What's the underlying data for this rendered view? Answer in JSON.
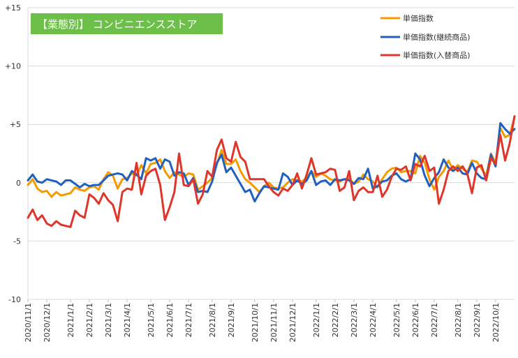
{
  "chart_data": {
    "type": "line",
    "title_badge": "【業態別】 コンビニエンスストア",
    "ylim": [
      -10,
      15
    ],
    "y_ticks": [
      {
        "value": 15,
        "label": "+15"
      },
      {
        "value": 10,
        "label": "+10"
      },
      {
        "value": 5,
        "label": "+5"
      },
      {
        "value": 0,
        "label": "0"
      },
      {
        "value": -5,
        "label": "-5"
      },
      {
        "value": -10,
        "label": "-10"
      }
    ],
    "x_ticks": [
      {
        "i": 0,
        "label": "2020/11/1"
      },
      {
        "i": 4,
        "label": "2020/12/1"
      },
      {
        "i": 9,
        "label": "2021/1/1"
      },
      {
        "i": 13,
        "label": "2021/2/1"
      },
      {
        "i": 17,
        "label": "2021/3/1"
      },
      {
        "i": 21,
        "label": "2021/4/1"
      },
      {
        "i": 26,
        "label": "2021/5/1"
      },
      {
        "i": 30,
        "label": "2021/6/1"
      },
      {
        "i": 34,
        "label": "2021/7/1"
      },
      {
        "i": 39,
        "label": "2021/8/1"
      },
      {
        "i": 43,
        "label": "2021/9/1"
      },
      {
        "i": 48,
        "label": "2021/10/1"
      },
      {
        "i": 52,
        "label": "2021/11/1"
      },
      {
        "i": 56,
        "label": "2021/12/1"
      },
      {
        "i": 61,
        "label": "2022/1/1"
      },
      {
        "i": 65,
        "label": "2022/2/1"
      },
      {
        "i": 69,
        "label": "2022/3/1"
      },
      {
        "i": 73,
        "label": "2022/4/1"
      },
      {
        "i": 78,
        "label": "2022/5/1"
      },
      {
        "i": 82,
        "label": "2022/6/1"
      },
      {
        "i": 86,
        "label": "2022/7/1"
      },
      {
        "i": 91,
        "label": "2022/8/1"
      },
      {
        "i": 95,
        "label": "2022/9/1"
      },
      {
        "i": 99,
        "label": "2022/10/1"
      }
    ],
    "x_count": 104,
    "grid": "horizontal",
    "legend_position": "top-right",
    "series": [
      {
        "name": "単価指数",
        "color": "#F59A00",
        "values": [
          -0.2,
          0.3,
          -0.5,
          -0.8,
          -0.7,
          -1.2,
          -0.8,
          -1.1,
          -1.0,
          -0.9,
          -0.4,
          -0.6,
          -0.7,
          -0.4,
          -0.3,
          -0.6,
          0.3,
          0.9,
          0.6,
          -0.5,
          0.3,
          0.4,
          0.8,
          0.6,
          1.5,
          0.8,
          1.6,
          1.7,
          2.0,
          1.0,
          0.4,
          0.9,
          0.7,
          0.5,
          0.8,
          0.7,
          -0.6,
          -0.3,
          0.0,
          0.4,
          1.6,
          2.8,
          1.6,
          1.6,
          2.0,
          1.0,
          0.3,
          0.0,
          -0.4,
          -0.8,
          -0.3,
          0.0,
          -0.4,
          -0.5,
          -0.4,
          0.0,
          0.3,
          0.2,
          0.1,
          0.4,
          1.0,
          0.5,
          0.8,
          0.6,
          0.3,
          0.2,
          0.1,
          0.3,
          0.4,
          -0.1,
          0.1,
          0.7,
          0.3,
          0.1,
          -0.4,
          0.3,
          0.9,
          1.2,
          1.3,
          0.9,
          1.0,
          1.0,
          0.8,
          2.3,
          1.7,
          0.3,
          -0.6,
          0.5,
          1.0,
          1.9,
          1.1,
          1.5,
          1.2,
          0.9,
          1.9,
          1.8,
          1.2,
          0.6,
          2.5,
          1.7,
          4.7,
          3.9,
          4.1,
          5.6
        ]
      },
      {
        "name": "単価指数(継続商品)",
        "color": "#2060C0",
        "values": [
          0.2,
          0.7,
          0.1,
          0.0,
          0.3,
          0.2,
          0.1,
          -0.2,
          0.2,
          0.2,
          -0.1,
          -0.4,
          -0.1,
          -0.3,
          -0.2,
          -0.2,
          0.2,
          0.6,
          0.7,
          0.8,
          0.7,
          0.2,
          1.0,
          0.7,
          0.3,
          2.1,
          1.9,
          2.1,
          1.2,
          2.0,
          1.8,
          0.6,
          0.9,
          0.8,
          -0.2,
          0.4,
          -0.8,
          -0.7,
          -0.8,
          0.1,
          1.7,
          2.4,
          0.9,
          1.3,
          0.6,
          -0.1,
          -0.8,
          -0.6,
          -1.6,
          -0.9,
          -0.3,
          -0.4,
          -0.5,
          -0.6,
          0.8,
          0.5,
          -0.2,
          0.2,
          -0.1,
          0.2,
          1.0,
          -0.2,
          0.1,
          0.2,
          -0.2,
          0.3,
          0.2,
          0.3,
          0.2,
          -0.1,
          0.4,
          0.3,
          1.2,
          -0.5,
          -0.3,
          0.1,
          0.2,
          0.6,
          0.8,
          0.3,
          0.1,
          0.3,
          2.5,
          2.0,
          0.6,
          -0.3,
          0.4,
          0.9,
          2.0,
          1.3,
          1.0,
          1.3,
          0.8,
          0.7,
          1.7,
          0.8,
          0.4,
          0.3,
          2.4,
          1.4,
          5.1,
          4.6,
          4.2,
          4.6
        ]
      },
      {
        "name": "単価指数(入替商品)",
        "color": "#E0352A",
        "values": [
          -3.0,
          -2.3,
          -3.2,
          -2.8,
          -3.5,
          -3.7,
          -3.3,
          -3.6,
          -3.7,
          -3.8,
          -2.4,
          -2.8,
          -3.0,
          -1.0,
          -1.3,
          -1.8,
          -0.9,
          -1.5,
          -1.9,
          -3.3,
          -0.8,
          -0.5,
          -0.6,
          1.7,
          -1.0,
          0.6,
          1.0,
          1.2,
          -0.2,
          -3.2,
          -2.1,
          -0.8,
          2.5,
          -0.2,
          -0.3,
          0.3,
          -1.8,
          -1.0,
          1.0,
          0.5,
          2.8,
          3.7,
          2.1,
          1.8,
          3.5,
          2.2,
          1.8,
          0.3,
          0.3,
          0.3,
          0.3,
          -0.3,
          -0.8,
          -1.1,
          -0.5,
          -0.7,
          -0.2,
          0.8,
          -0.5,
          0.7,
          2.1,
          0.7,
          0.8,
          0.9,
          1.2,
          1.1,
          -0.7,
          -0.4,
          1.0,
          -1.5,
          -0.7,
          -0.4,
          -0.8,
          -0.8,
          0.6,
          -1.2,
          -0.6,
          0.5,
          1.2,
          1.1,
          1.4,
          0.2,
          1.6,
          1.4,
          2.3,
          1.0,
          1.3,
          -1.8,
          -0.6,
          1.0,
          1.4,
          1.0,
          1.4,
          0.8,
          -0.9,
          1.3,
          1.5,
          0.2,
          2.1,
          1.6,
          4.1,
          1.9,
          3.4,
          5.7
        ]
      }
    ]
  }
}
